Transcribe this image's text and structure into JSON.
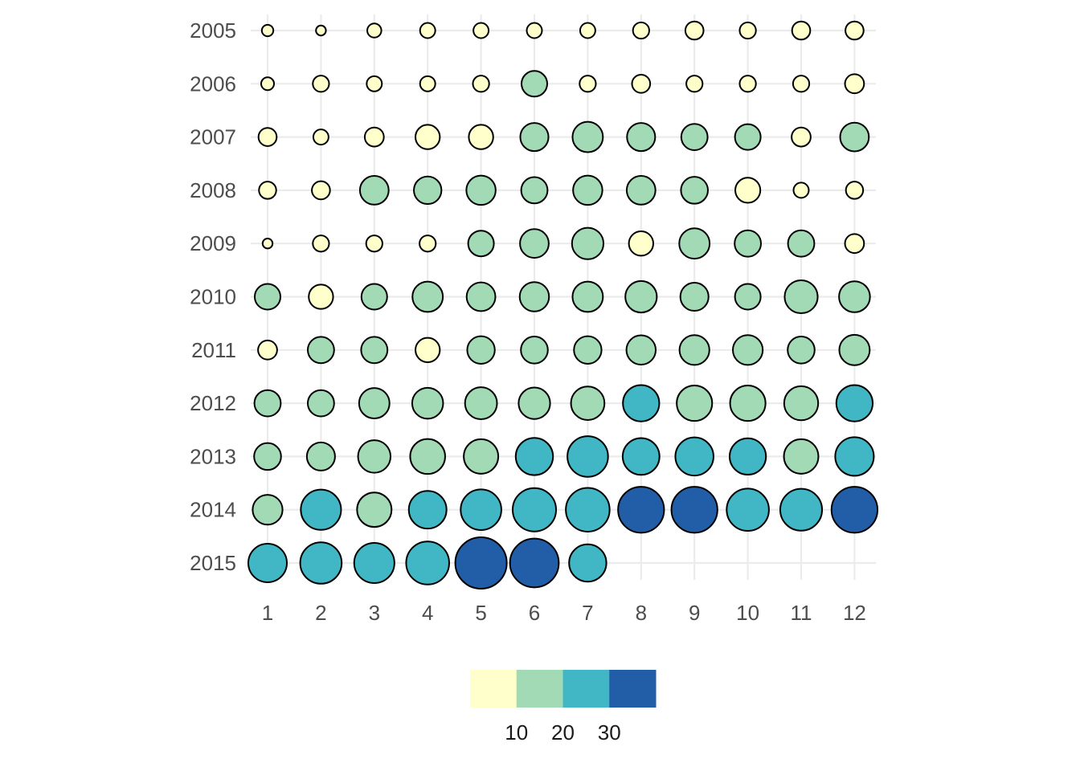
{
  "chart_data": {
    "type": "scatter",
    "encoding": "bubble grid: x = month, y = year; fill color bins and bubble size both encode the value",
    "x_categories": [
      "1",
      "2",
      "3",
      "4",
      "5",
      "6",
      "7",
      "8",
      "9",
      "10",
      "11",
      "12"
    ],
    "y_categories": [
      "2005",
      "2006",
      "2007",
      "2008",
      "2009",
      "2010",
      "2011",
      "2012",
      "2013",
      "2014",
      "2015"
    ],
    "title": "",
    "xlabel": "",
    "ylabel": "",
    "grid": true,
    "values": [
      [
        2,
        1.5,
        3,
        3.5,
        3.5,
        3.5,
        3.5,
        4,
        5,
        4,
        5,
        5
      ],
      [
        2.5,
        4,
        3.5,
        3.5,
        4,
        10,
        4,
        5,
        4,
        4,
        4,
        5.5
      ],
      [
        5,
        3.5,
        5.5,
        9,
        9,
        12,
        14,
        12,
        10.5,
        10,
        5.5,
        12.5
      ],
      [
        4.5,
        5,
        12.5,
        11.5,
        13,
        10.5,
        13,
        12.5,
        11,
        9.5,
        3.5,
        4.5
      ],
      [
        1.5,
        4,
        4,
        4,
        10,
        12.5,
        15,
        9,
        14,
        10.5,
        10.5,
        5.5
      ],
      [
        10,
        9,
        10,
        14,
        12.5,
        13,
        14,
        15,
        12,
        10,
        16.5,
        14.5
      ],
      [
        5.5,
        10.5,
        10.5,
        9,
        11.5,
        11,
        11.5,
        13,
        13.5,
        13.5,
        11,
        14
      ],
      [
        10.5,
        10.5,
        14,
        14.5,
        15.5,
        15,
        17,
        20,
        19,
        19,
        17.5,
        20
      ],
      [
        11,
        12,
        16,
        18.5,
        18,
        21,
        25,
        20.5,
        22,
        20,
        18,
        22.5
      ],
      [
        13.5,
        24.5,
        18,
        21.5,
        25,
        28.5,
        29,
        32,
        32,
        27,
        26.5,
        32
      ],
      [
        22.5,
        26,
        24.5,
        28,
        40,
        36,
        21,
        null,
        null,
        null,
        null,
        null
      ]
    ],
    "color_scale": {
      "breaks": [
        10,
        20,
        30
      ],
      "bins": [
        "#ffffcc",
        "#a1dab4",
        "#41b6c4",
        "#225ea8"
      ]
    },
    "legend": {
      "position": "bottom",
      "labels": [
        "10",
        "20",
        "30"
      ]
    }
  }
}
